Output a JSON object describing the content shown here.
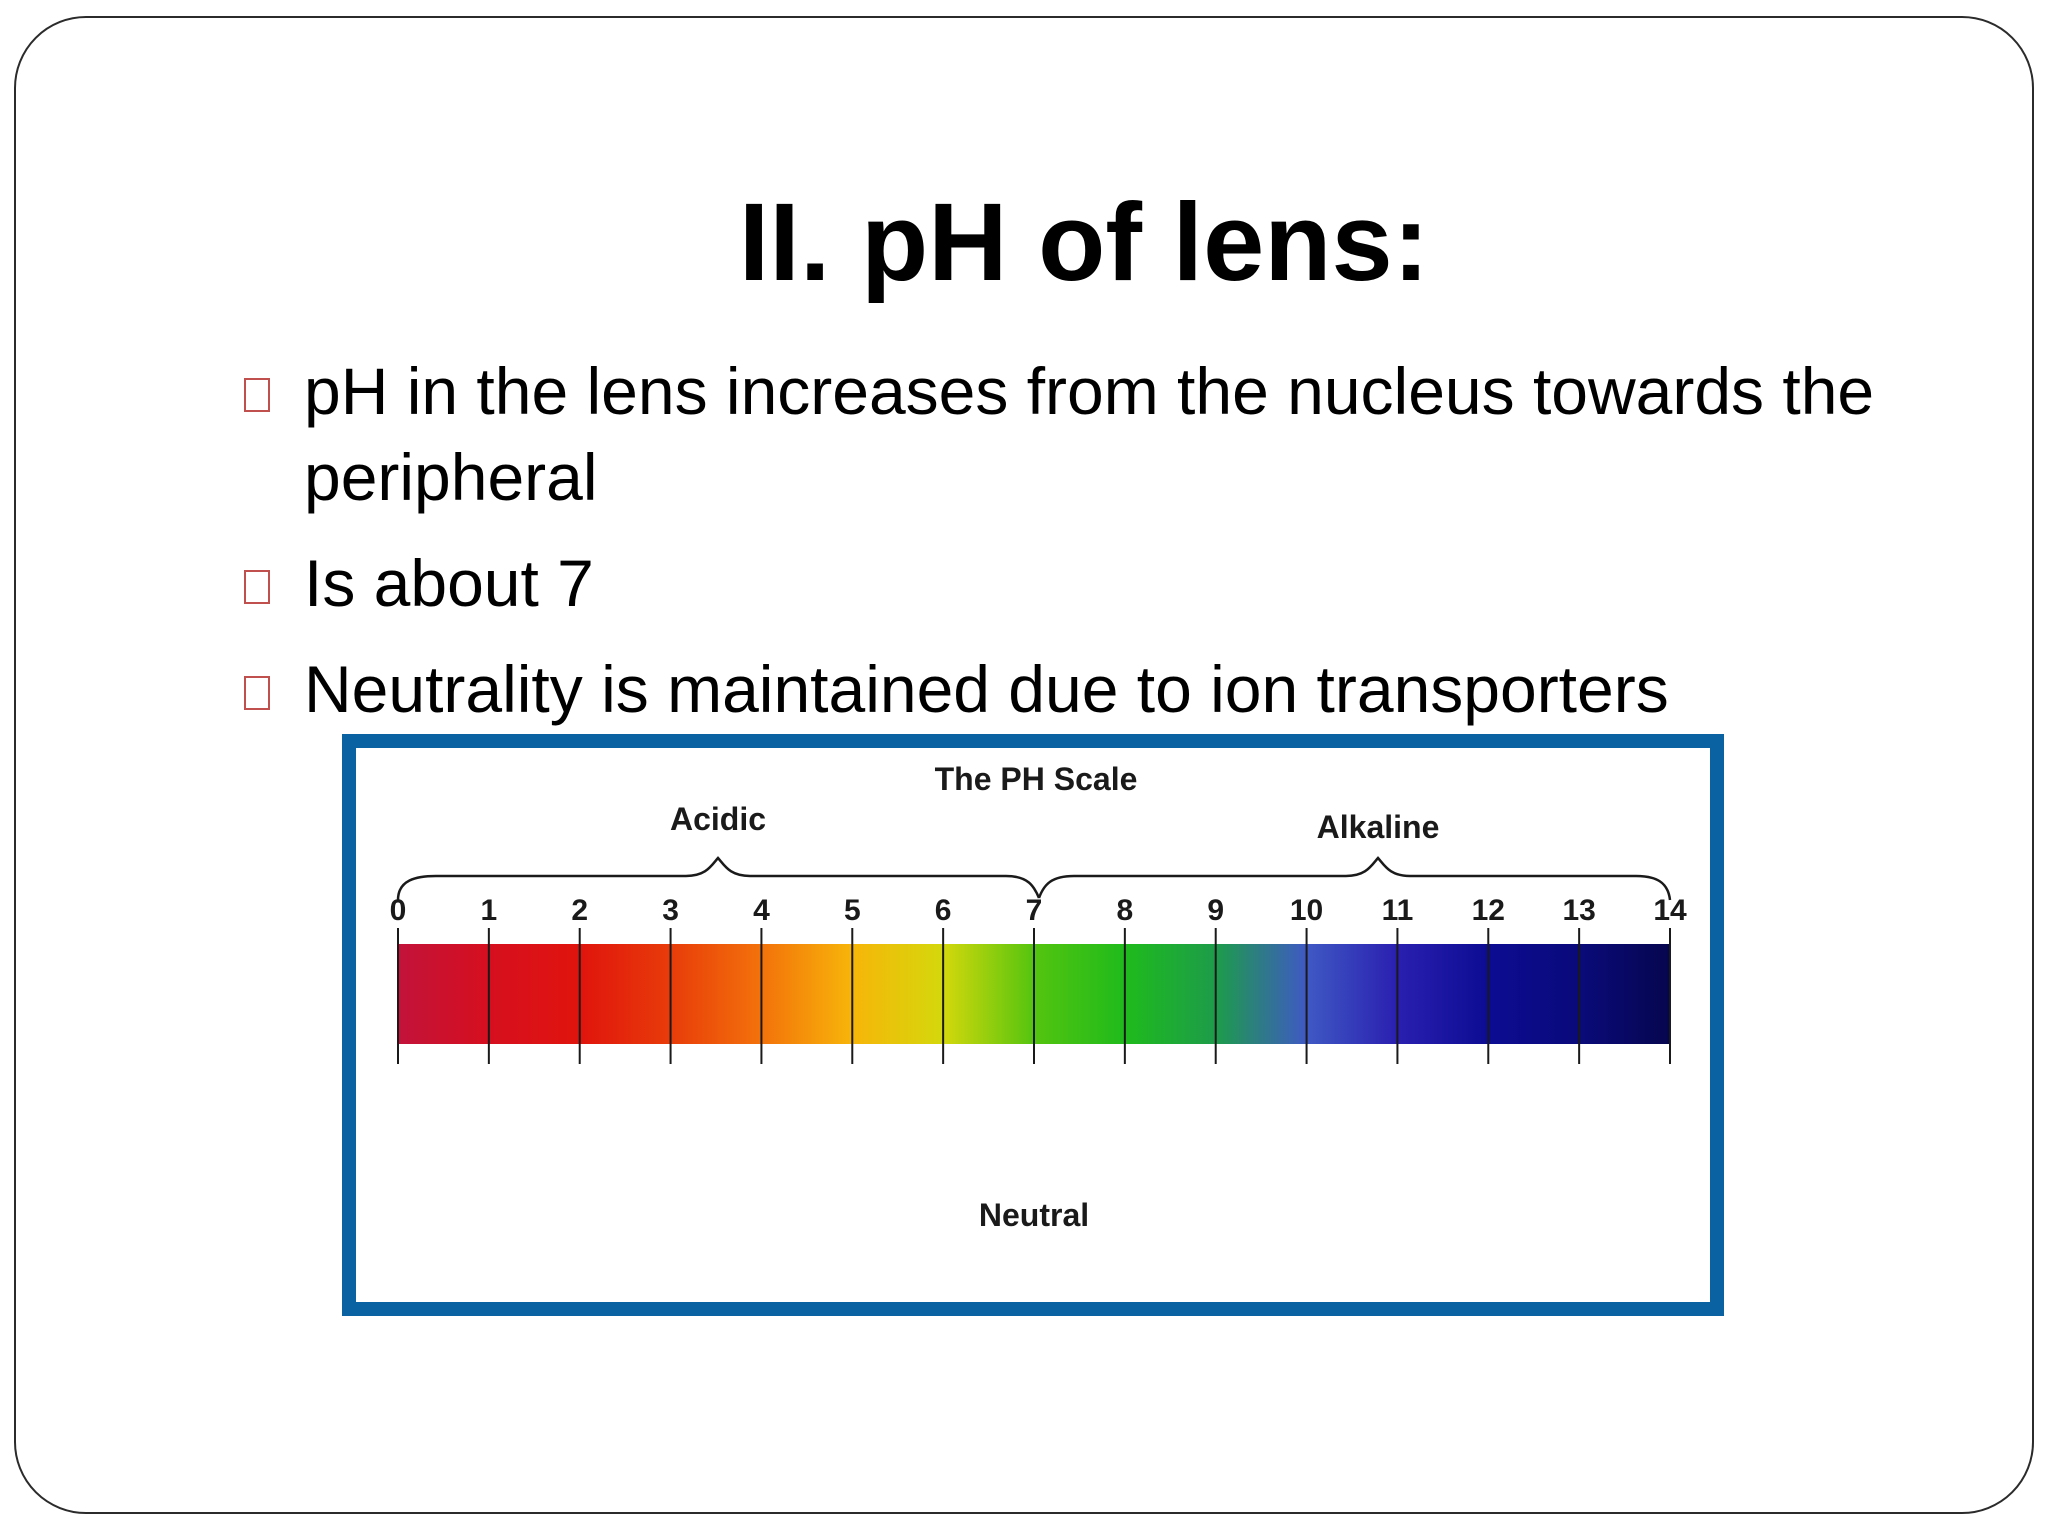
{
  "slide": {
    "title": "II. pH of lens:",
    "bullets": [
      "pH in the lens increases from the nucleus towards the peripheral",
      "Is about 7",
      "Neutrality is maintained due to ion transporters"
    ],
    "bullet_color": "#c0504d"
  },
  "figure": {
    "title": "The PH Scale",
    "acidic_label": "Acidic",
    "alkaline_label": "Alkaline",
    "neutral_label": "Neutral",
    "border_color": "#0a62a2",
    "ticks": [
      "0",
      "1",
      "2",
      "3",
      "4",
      "5",
      "6",
      "7",
      "8",
      "9",
      "10",
      "11",
      "12",
      "13",
      "14"
    ],
    "colors": [
      "#c2133a",
      "#d60f1f",
      "#e0140d",
      "#e83c0a",
      "#f3720b",
      "#f7b509",
      "#d4d80c",
      "#54c40f",
      "#1fbb1c",
      "#1d9c4a",
      "#3f59c4",
      "#2a1fb0",
      "#0c0c93",
      "#0a0a7a",
      "#06064f"
    ]
  }
}
